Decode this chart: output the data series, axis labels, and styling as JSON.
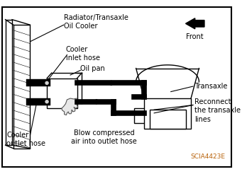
{
  "bg_color": "#ffffff",
  "fig_width": 3.48,
  "fig_height": 2.46,
  "labels": {
    "radiator": "Radiator/Transaxle\nOil Cooler",
    "cooler_inlet": "Cooler\ninlet hose",
    "oil_pan": "Oil pan",
    "front": "Front",
    "transaxle": "Transaxle",
    "reconnect": "Reconnect\nthe transaxle\nlines",
    "cooler_outlet": "Cooler\noutlet hose",
    "blow": "Blow compressed\nair into outlet hose",
    "code": "SCIA4423E"
  },
  "label_colors": {
    "code": "#b8620a"
  }
}
